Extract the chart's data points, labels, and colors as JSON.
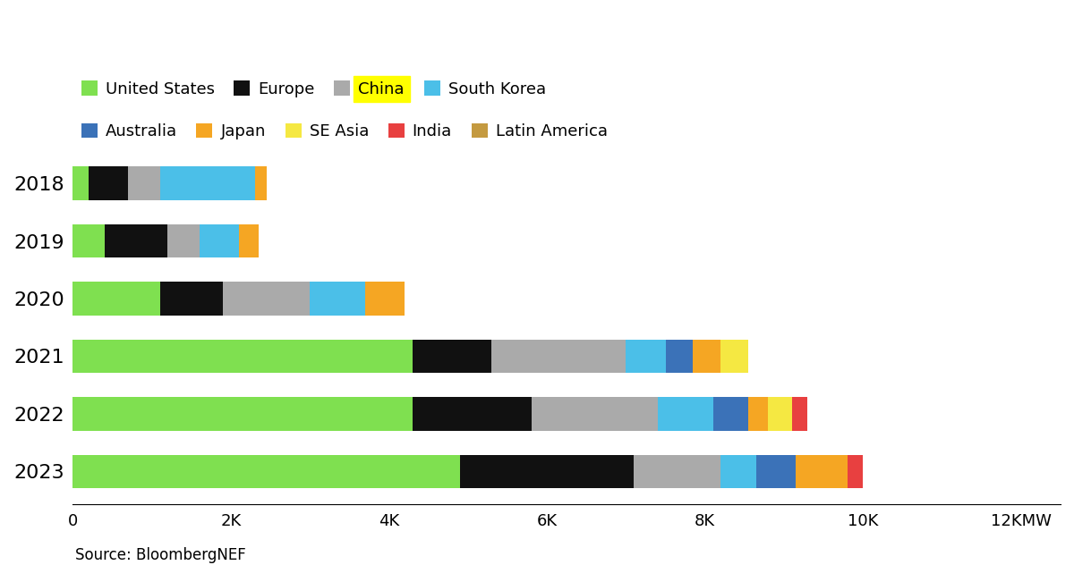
{
  "years": [
    "2018",
    "2019",
    "2020",
    "2021",
    "2022",
    "2023"
  ],
  "categories": [
    "United States",
    "Europe",
    "China",
    "South Korea",
    "Australia",
    "Japan",
    "SE Asia",
    "India",
    "Latin America"
  ],
  "colors": [
    "#7FE050",
    "#111111",
    "#AAAAAA",
    "#4BBFE8",
    "#3B72B8",
    "#F5A623",
    "#F5E842",
    "#E84040",
    "#C49A40"
  ],
  "data_mw": {
    "United States": [
      200,
      400,
      1100,
      4300,
      4300,
      4900
    ],
    "Europe": [
      500,
      800,
      800,
      1000,
      1500,
      2200
    ],
    "China": [
      400,
      400,
      1100,
      1700,
      1600,
      1100
    ],
    "South Korea": [
      1200,
      500,
      700,
      500,
      700,
      450
    ],
    "Australia": [
      0,
      0,
      0,
      350,
      450,
      500
    ],
    "Japan": [
      150,
      250,
      500,
      350,
      250,
      650
    ],
    "SE Asia": [
      0,
      0,
      0,
      350,
      300,
      0
    ],
    "India": [
      0,
      0,
      0,
      0,
      200,
      200
    ],
    "Latin America": [
      0,
      0,
      0,
      0,
      0,
      0
    ]
  },
  "xlim_max": 12500,
  "xticks": [
    0,
    2000,
    4000,
    6000,
    8000,
    10000,
    12000
  ],
  "xticklabels": [
    "0",
    "2K",
    "4K",
    "6K",
    "8K",
    "10K",
    "12KMW"
  ],
  "bar_height": 0.58,
  "source_text": "Source: BloombergNEF",
  "china_bg_color": "#FFFF00",
  "background_color": "#FFFFFF",
  "legend_row1": [
    "United States",
    "Europe",
    "China",
    "South Korea"
  ],
  "legend_row2": [
    "Australia",
    "Japan",
    "SE Asia",
    "India",
    "Latin America"
  ],
  "legend_fontsize": 13,
  "ylabel_fontsize": 16,
  "xlabel_fontsize": 13
}
